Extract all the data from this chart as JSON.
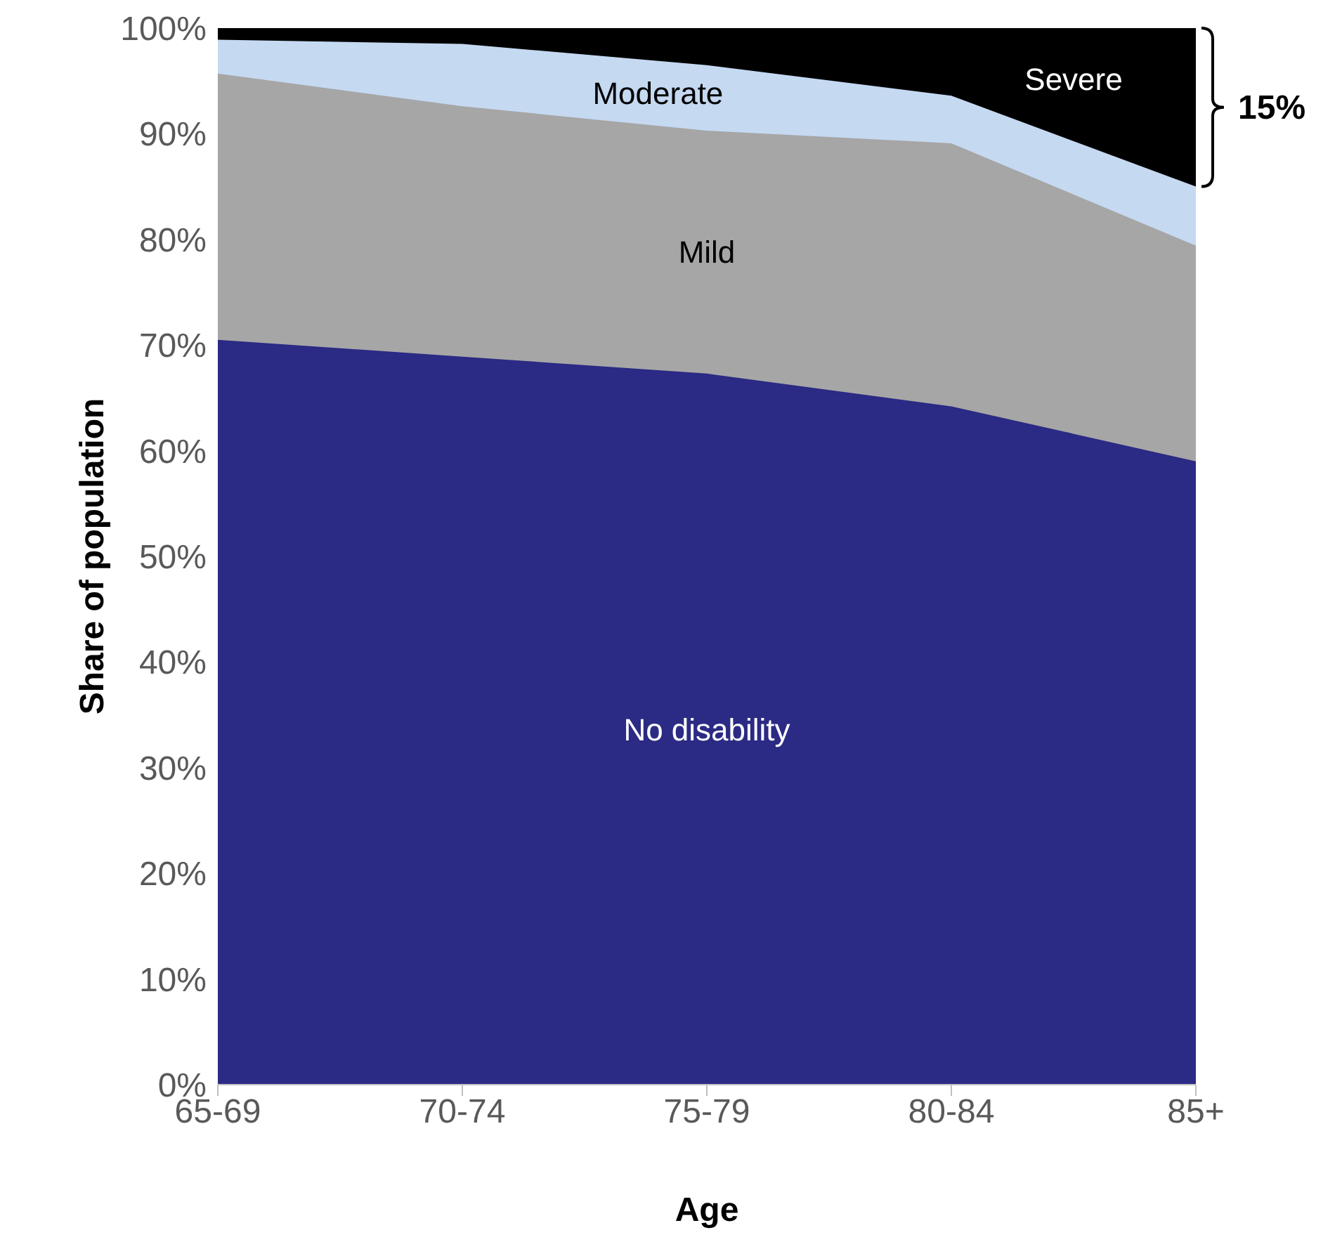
{
  "chart_data": {
    "type": "area",
    "stacked": true,
    "xlabel": "Age",
    "ylabel": "Share of population",
    "categories": [
      "65-69",
      "70-74",
      "75-79",
      "80-84",
      "85+"
    ],
    "series": [
      {
        "name": "No disability",
        "color": "#2b2a84",
        "values": [
          70.5,
          68.9,
          67.3,
          64.2,
          59.0
        ]
      },
      {
        "name": "Mild",
        "color": "#a6a6a6",
        "values": [
          25.2,
          23.7,
          23.0,
          24.9,
          20.4
        ]
      },
      {
        "name": "Moderate",
        "color": "#c5d9f1",
        "values": [
          3.2,
          5.9,
          6.2,
          4.5,
          5.6
        ]
      },
      {
        "name": "Severe",
        "color": "#000000",
        "values": [
          1.1,
          1.5,
          3.5,
          6.4,
          15.0
        ]
      }
    ],
    "ylim": [
      0,
      100
    ],
    "yticks": [
      {
        "value": 0,
        "label": "0%"
      },
      {
        "value": 10,
        "label": "10%"
      },
      {
        "value": 20,
        "label": "20%"
      },
      {
        "value": 30,
        "label": "30%"
      },
      {
        "value": 40,
        "label": "40%"
      },
      {
        "value": 50,
        "label": "50%"
      },
      {
        "value": 60,
        "label": "60%"
      },
      {
        "value": 70,
        "label": "70%"
      },
      {
        "value": 80,
        "label": "80%"
      },
      {
        "value": 90,
        "label": "90%"
      },
      {
        "value": 100,
        "label": "100%"
      }
    ],
    "annotations": [
      "15%"
    ],
    "grid": false,
    "legend": false
  }
}
